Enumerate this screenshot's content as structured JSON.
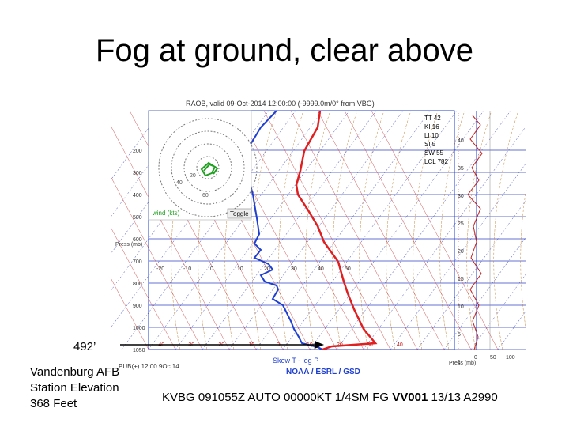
{
  "slide": {
    "title": "Fog at ground, clear above",
    "marker_label": "492’",
    "station": [
      "Vandenburg AFB",
      "Station Elevation",
      "368 Feet"
    ],
    "metar": {
      "prefix": "KVBG 091055Z AUTO 00000KT 1/4SM FG ",
      "bold": "VV001",
      "suffix": " 13/13 A2990"
    }
  },
  "chart": {
    "header": "RAOB, valid 09-Oct-2014 12:00:00 (-9999.0m/0° from VBG)",
    "credit": "NOAA / ESRL / GSD",
    "footer_left": "PUB(+) 12:00 9Oct14",
    "skewt_label": "Skew T - log P",
    "pressure_axis_label": "Press (mb)",
    "pressure_ticks": [
      "200",
      "300",
      "400",
      "500",
      "600",
      "700",
      "800",
      "900",
      "1000",
      "1050"
    ],
    "temp_ticks": [
      "-40",
      "-30",
      "-20",
      "-10",
      "0",
      "10",
      "20",
      "30",
      "40"
    ],
    "upper_temp_ticks": [
      "-20",
      "-10",
      "0",
      "10",
      "20",
      "30",
      "40",
      "50"
    ],
    "height_ticks": [
      "40",
      "35",
      "30",
      "25",
      "20",
      "15",
      "10",
      "5",
      "1"
    ],
    "wind_axis_ticks": [
      "0",
      "50",
      "100"
    ],
    "wind_axis_label": "Press (mb)",
    "hodograph_label": "wind (kts)",
    "toggle_label": "Toggle",
    "indices": [
      "TT 42",
      "KI 16",
      "LI 10",
      "SI 5",
      "SW 55",
      "LCL 782"
    ],
    "hodo_ring_labels": [
      "60",
      "40",
      "20"
    ],
    "colors": {
      "temperature": "#e02020",
      "dewpoint": "#1f3fd0",
      "grid": "#3040c0",
      "dry_adiabat": "#d05050",
      "moist_adiabat": "#c08030",
      "hodograph": "#20a020",
      "arrow": "#000000"
    }
  }
}
